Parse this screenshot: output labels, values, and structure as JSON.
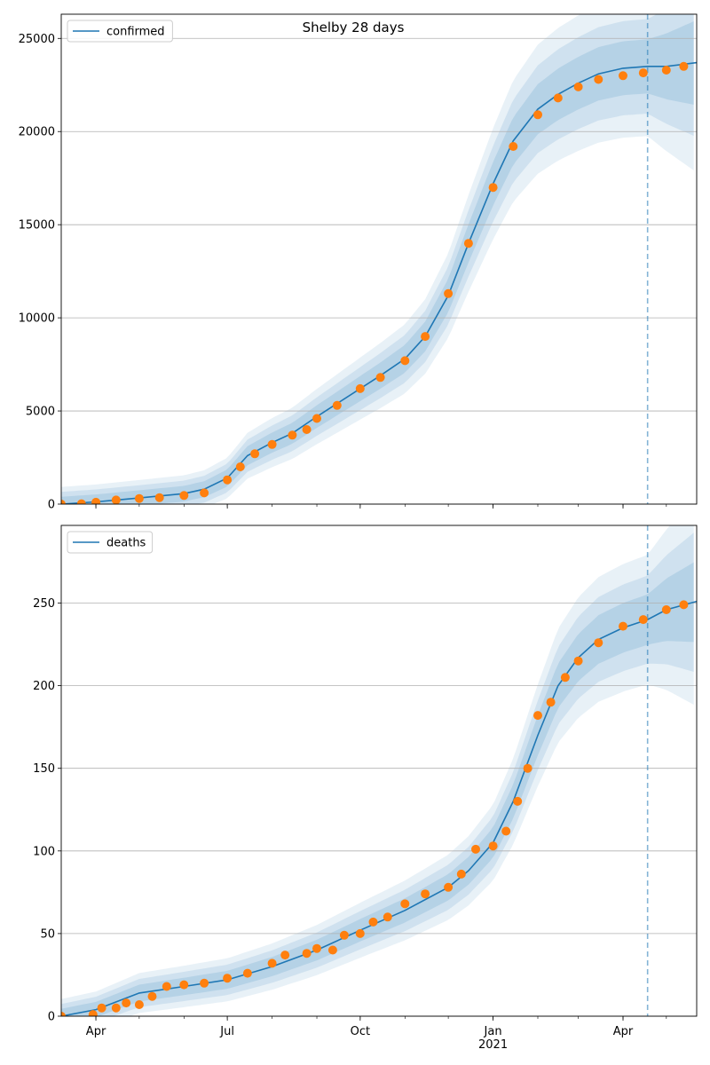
{
  "figure": {
    "title": "Shelby 28 days"
  },
  "colors": {
    "line": "#1f77b4",
    "observed": "#ff7f0e",
    "band": "#1f77b4",
    "grid": "#b0b0b0",
    "vline": "#1f77b4"
  },
  "chart_data": [
    {
      "type": "line",
      "legend": "confirmed",
      "legend_position": "upper-left",
      "grid": "horizontal",
      "xlim": [
        "2020-03-08",
        "2021-05-22"
      ],
      "ylim": [
        0,
        26300
      ],
      "yticks": [
        0,
        5000,
        10000,
        15000,
        20000,
        25000
      ],
      "xticks": [
        {
          "date": "2020-04-01",
          "label": "Apr",
          "sublabel": ""
        },
        {
          "date": "2020-07-01",
          "label": "Jul",
          "sublabel": ""
        },
        {
          "date": "2020-10-01",
          "label": "Oct",
          "sublabel": ""
        },
        {
          "date": "2021-01-01",
          "label": "Jan",
          "sublabel": "2021"
        },
        {
          "date": "2021-04-01",
          "label": "Apr",
          "sublabel": ""
        }
      ],
      "forecast_start": "2021-04-18",
      "model": [
        {
          "date": "2020-03-08",
          "y": 0
        },
        {
          "date": "2020-04-01",
          "y": 120
        },
        {
          "date": "2020-05-01",
          "y": 330
        },
        {
          "date": "2020-06-01",
          "y": 560
        },
        {
          "date": "2020-06-15",
          "y": 800
        },
        {
          "date": "2020-07-01",
          "y": 1400
        },
        {
          "date": "2020-07-15",
          "y": 2600
        },
        {
          "date": "2020-08-01",
          "y": 3300
        },
        {
          "date": "2020-08-15",
          "y": 3800
        },
        {
          "date": "2020-09-01",
          "y": 4700
        },
        {
          "date": "2020-09-15",
          "y": 5400
        },
        {
          "date": "2020-10-01",
          "y": 6200
        },
        {
          "date": "2020-10-15",
          "y": 6900
        },
        {
          "date": "2020-11-01",
          "y": 7800
        },
        {
          "date": "2020-11-15",
          "y": 9000
        },
        {
          "date": "2020-12-01",
          "y": 11200
        },
        {
          "date": "2020-12-15",
          "y": 14000
        },
        {
          "date": "2021-01-01",
          "y": 17200
        },
        {
          "date": "2021-01-15",
          "y": 19500
        },
        {
          "date": "2021-02-01",
          "y": 21200
        },
        {
          "date": "2021-02-15",
          "y": 22000
        },
        {
          "date": "2021-03-01",
          "y": 22600
        },
        {
          "date": "2021-03-15",
          "y": 23100
        },
        {
          "date": "2021-04-01",
          "y": 23400
        },
        {
          "date": "2021-04-18",
          "y": 23500
        },
        {
          "date": "2021-05-01",
          "y": 23500
        },
        {
          "date": "2021-05-22",
          "y": 23700
        }
      ],
      "observed": [
        {
          "date": "2020-03-08",
          "y": 0
        },
        {
          "date": "2020-03-22",
          "y": 20
        },
        {
          "date": "2020-04-01",
          "y": 100
        },
        {
          "date": "2020-04-15",
          "y": 220
        },
        {
          "date": "2020-05-01",
          "y": 300
        },
        {
          "date": "2020-05-15",
          "y": 350
        },
        {
          "date": "2020-06-01",
          "y": 460
        },
        {
          "date": "2020-06-15",
          "y": 600
        },
        {
          "date": "2020-07-01",
          "y": 1300
        },
        {
          "date": "2020-07-10",
          "y": 2000
        },
        {
          "date": "2020-07-20",
          "y": 2700
        },
        {
          "date": "2020-08-01",
          "y": 3200
        },
        {
          "date": "2020-08-15",
          "y": 3700
        },
        {
          "date": "2020-08-25",
          "y": 4000
        },
        {
          "date": "2020-09-01",
          "y": 4600
        },
        {
          "date": "2020-09-15",
          "y": 5300
        },
        {
          "date": "2020-10-01",
          "y": 6200
        },
        {
          "date": "2020-10-15",
          "y": 6800
        },
        {
          "date": "2020-11-01",
          "y": 7700
        },
        {
          "date": "2020-11-15",
          "y": 9000
        },
        {
          "date": "2020-12-01",
          "y": 11300
        },
        {
          "date": "2020-12-15",
          "y": 14000
        },
        {
          "date": "2021-01-01",
          "y": 17000
        },
        {
          "date": "2021-01-15",
          "y": 19200
        },
        {
          "date": "2021-02-01",
          "y": 20900
        },
        {
          "date": "2021-02-15",
          "y": 21800
        },
        {
          "date": "2021-03-01",
          "y": 22400
        },
        {
          "date": "2021-03-15",
          "y": 22800
        },
        {
          "date": "2021-04-01",
          "y": 23000
        },
        {
          "date": "2021-04-15",
          "y": 23150
        },
        {
          "date": "2021-05-01",
          "y": 23300
        },
        {
          "date": "2021-05-13",
          "y": 23500
        }
      ]
    },
    {
      "type": "line",
      "legend": "deaths",
      "legend_position": "upper-left",
      "grid": "horizontal",
      "xlim": [
        "2020-03-08",
        "2021-05-22"
      ],
      "ylim": [
        0,
        297
      ],
      "yticks": [
        0,
        50,
        100,
        150,
        200,
        250
      ],
      "xticks": [
        {
          "date": "2020-04-01",
          "label": "Apr",
          "sublabel": ""
        },
        {
          "date": "2020-07-01",
          "label": "Jul",
          "sublabel": ""
        },
        {
          "date": "2020-10-01",
          "label": "Oct",
          "sublabel": ""
        },
        {
          "date": "2021-01-01",
          "label": "Jan",
          "sublabel": "2021"
        },
        {
          "date": "2021-04-01",
          "label": "Apr",
          "sublabel": ""
        }
      ],
      "forecast_start": "2021-04-18",
      "model": [
        {
          "date": "2020-03-08",
          "y": 0
        },
        {
          "date": "2020-04-01",
          "y": 4
        },
        {
          "date": "2020-05-01",
          "y": 14
        },
        {
          "date": "2020-06-01",
          "y": 18
        },
        {
          "date": "2020-07-01",
          "y": 22
        },
        {
          "date": "2020-08-01",
          "y": 30
        },
        {
          "date": "2020-09-01",
          "y": 40
        },
        {
          "date": "2020-10-01",
          "y": 52
        },
        {
          "date": "2020-11-01",
          "y": 64
        },
        {
          "date": "2020-12-01",
          "y": 78
        },
        {
          "date": "2020-12-15",
          "y": 88
        },
        {
          "date": "2021-01-01",
          "y": 105
        },
        {
          "date": "2021-01-15",
          "y": 130
        },
        {
          "date": "2021-02-01",
          "y": 170
        },
        {
          "date": "2021-02-15",
          "y": 200
        },
        {
          "date": "2021-03-01",
          "y": 217
        },
        {
          "date": "2021-03-15",
          "y": 228
        },
        {
          "date": "2021-04-01",
          "y": 235
        },
        {
          "date": "2021-04-18",
          "y": 240
        },
        {
          "date": "2021-05-01",
          "y": 246
        },
        {
          "date": "2021-05-22",
          "y": 251
        }
      ],
      "observed": [
        {
          "date": "2020-03-08",
          "y": 0
        },
        {
          "date": "2020-03-30",
          "y": 1
        },
        {
          "date": "2020-04-05",
          "y": 5
        },
        {
          "date": "2020-04-15",
          "y": 5
        },
        {
          "date": "2020-04-22",
          "y": 8
        },
        {
          "date": "2020-05-01",
          "y": 7
        },
        {
          "date": "2020-05-10",
          "y": 12
        },
        {
          "date": "2020-05-20",
          "y": 18
        },
        {
          "date": "2020-06-01",
          "y": 19
        },
        {
          "date": "2020-06-15",
          "y": 20
        },
        {
          "date": "2020-07-01",
          "y": 23
        },
        {
          "date": "2020-07-15",
          "y": 26
        },
        {
          "date": "2020-08-01",
          "y": 32
        },
        {
          "date": "2020-08-10",
          "y": 37
        },
        {
          "date": "2020-08-25",
          "y": 38
        },
        {
          "date": "2020-09-01",
          "y": 41
        },
        {
          "date": "2020-09-12",
          "y": 40
        },
        {
          "date": "2020-09-20",
          "y": 49
        },
        {
          "date": "2020-10-01",
          "y": 50
        },
        {
          "date": "2020-10-10",
          "y": 57
        },
        {
          "date": "2020-10-20",
          "y": 60
        },
        {
          "date": "2020-11-01",
          "y": 68
        },
        {
          "date": "2020-11-15",
          "y": 74
        },
        {
          "date": "2020-12-01",
          "y": 78
        },
        {
          "date": "2020-12-10",
          "y": 86
        },
        {
          "date": "2020-12-20",
          "y": 101
        },
        {
          "date": "2021-01-01",
          "y": 103
        },
        {
          "date": "2021-01-10",
          "y": 112
        },
        {
          "date": "2021-01-18",
          "y": 130
        },
        {
          "date": "2021-01-25",
          "y": 150
        },
        {
          "date": "2021-02-01",
          "y": 182
        },
        {
          "date": "2021-02-10",
          "y": 190
        },
        {
          "date": "2021-02-20",
          "y": 205
        },
        {
          "date": "2021-03-01",
          "y": 215
        },
        {
          "date": "2021-03-15",
          "y": 226
        },
        {
          "date": "2021-04-01",
          "y": 236
        },
        {
          "date": "2021-04-15",
          "y": 240
        },
        {
          "date": "2021-05-01",
          "y": 246
        },
        {
          "date": "2021-05-13",
          "y": 249
        }
      ]
    }
  ]
}
